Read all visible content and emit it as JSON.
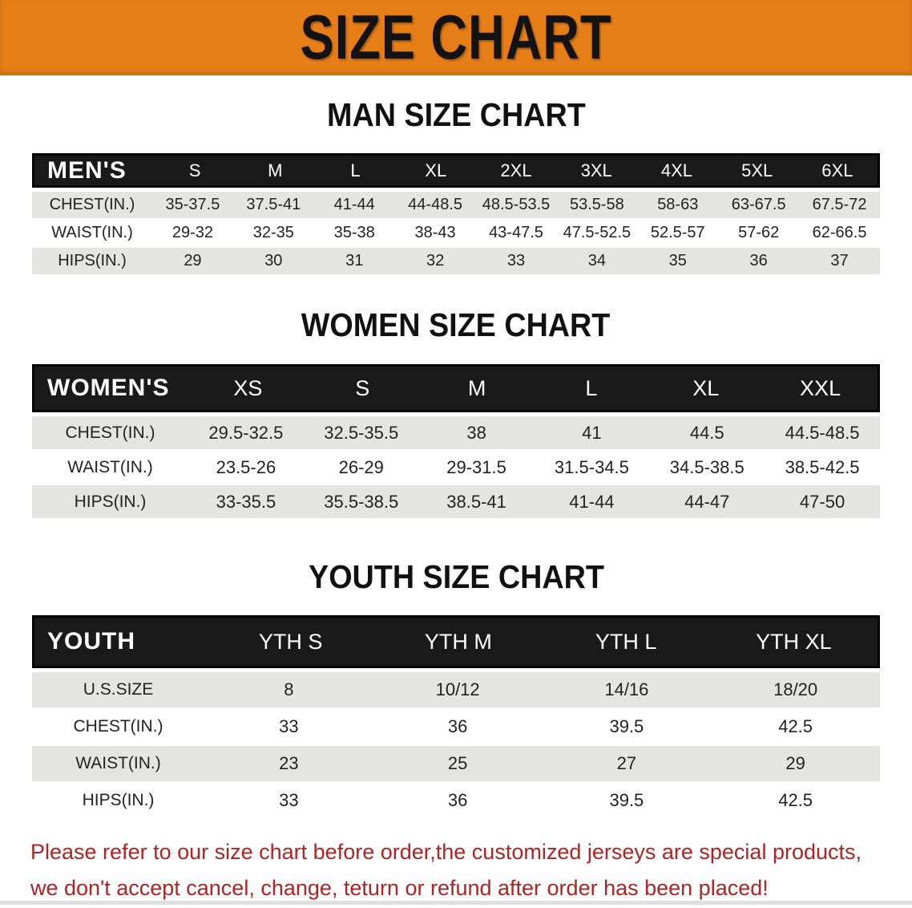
{
  "banner": {
    "title": "SIZE CHART"
  },
  "sections": {
    "men": {
      "title": "MAN SIZE CHART"
    },
    "women": {
      "title": "WOMEN SIZE CHART"
    },
    "youth": {
      "title": "YOUTH SIZE CHART"
    }
  },
  "tables": [
    {
      "id": "mens",
      "header_label": "MEN'S",
      "columns": [
        "S",
        "M",
        "L",
        "XL",
        "2XL",
        "3XL",
        "4XL",
        "5XL",
        "6XL"
      ],
      "rows": [
        {
          "label": "CHEST(IN.)",
          "values": [
            "35-37.5",
            "37.5-41",
            "41-44",
            "44-48.5",
            "48.5-53.5",
            "53.5-58",
            "58-63",
            "63-67.5",
            "67.5-72"
          ]
        },
        {
          "label": "WAIST(IN.)",
          "values": [
            "29-32",
            "32-35",
            "35-38",
            "38-43",
            "43-47.5",
            "47.5-52.5",
            "52.5-57",
            "57-62",
            "62-66.5"
          ]
        },
        {
          "label": "HIPS(IN.)",
          "values": [
            "29",
            "30",
            "31",
            "32",
            "33",
            "34",
            "35",
            "36",
            "37"
          ]
        }
      ]
    },
    {
      "id": "womens",
      "header_label": "WOMEN'S",
      "columns": [
        "XS",
        "S",
        "M",
        "L",
        "XL",
        "XXL"
      ],
      "rows": [
        {
          "label": "CHEST(IN.)",
          "values": [
            "29.5-32.5",
            "32.5-35.5",
            "38",
            "41",
            "44.5",
            "44.5-48.5"
          ]
        },
        {
          "label": "WAIST(IN.)",
          "values": [
            "23.5-26",
            "26-29",
            "29-31.5",
            "31.5-34.5",
            "34.5-38.5",
            "38.5-42.5"
          ]
        },
        {
          "label": "HIPS(IN.)",
          "values": [
            "33-35.5",
            "35.5-38.5",
            "38.5-41",
            "41-44",
            "44-47",
            "47-50"
          ]
        }
      ]
    },
    {
      "id": "youth",
      "header_label": "YOUTH",
      "columns": [
        "YTH S",
        "YTH M",
        "YTH L",
        "YTH XL"
      ],
      "rows": [
        {
          "label": "U.S.SIZE",
          "values": [
            "8",
            "10/12",
            "14/16",
            "18/20"
          ]
        },
        {
          "label": "CHEST(IN.)",
          "values": [
            "33",
            "36",
            "39.5",
            "42.5"
          ]
        },
        {
          "label": "WAIST(IN.)",
          "values": [
            "23",
            "25",
            "27",
            "29"
          ]
        },
        {
          "label": "HIPS(IN.)",
          "values": [
            "33",
            "36",
            "39.5",
            "42.5"
          ]
        }
      ]
    }
  ],
  "footer": {
    "line1": "Please refer to our size chart before order,the customized jerseys are special products,",
    "line2": "we don't accept cancel, change, teturn or refund after order has been placed!"
  },
  "colors": {
    "banner_bg": "#E67E17",
    "banner_text": "#131313",
    "table_header_bg": "#1A1A1A",
    "row_stripe": "#E4E4E3",
    "footer_text": "#B22222"
  }
}
